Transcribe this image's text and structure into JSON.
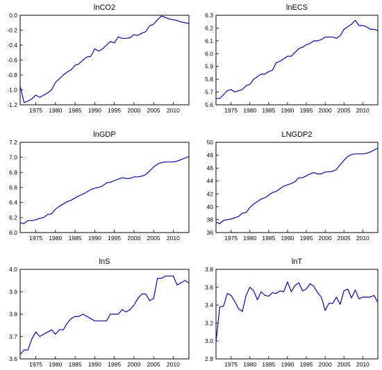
{
  "chart_data": [
    {
      "type": "line",
      "title": "lnCO2",
      "xlim": [
        1971,
        2014
      ],
      "ylim": [
        -1.2,
        0.0
      ],
      "yticks": [
        -1.2,
        -1.0,
        -0.8,
        -0.6,
        -0.4,
        -0.2,
        0.0
      ],
      "ytick_labels": [
        "-1.2",
        "-1.0",
        "-0.8",
        "-0.6",
        "-0.4",
        "-0.2",
        "0.0"
      ],
      "xticks": [
        1975,
        1980,
        1985,
        1990,
        1995,
        2000,
        2005,
        2010
      ],
      "xtick_labels": [
        "1975",
        "1980",
        "1985",
        "1990",
        "1995",
        "2000",
        "2005",
        "2010"
      ],
      "color": "#0000e6",
      "x": [
        1971,
        1972,
        1973,
        1974,
        1975,
        1976,
        1977,
        1978,
        1979,
        1980,
        1981,
        1982,
        1983,
        1984,
        1985,
        1986,
        1987,
        1988,
        1989,
        1990,
        1991,
        1992,
        1993,
        1994,
        1995,
        1996,
        1997,
        1998,
        1999,
        2000,
        2001,
        2002,
        2003,
        2004,
        2005,
        2006,
        2007,
        2008,
        2009,
        2010,
        2011,
        2012,
        2013,
        2014
      ],
      "y": [
        -0.95,
        -1.17,
        -1.15,
        -1.12,
        -1.07,
        -1.1,
        -1.07,
        -1.04,
        -1.0,
        -0.9,
        -0.85,
        -0.8,
        -0.76,
        -0.73,
        -0.67,
        -0.65,
        -0.6,
        -0.56,
        -0.55,
        -0.45,
        -0.48,
        -0.45,
        -0.4,
        -0.35,
        -0.37,
        -0.29,
        -0.31,
        -0.31,
        -0.3,
        -0.26,
        -0.27,
        -0.24,
        -0.22,
        -0.14,
        -0.12,
        -0.06,
        -0.01,
        -0.03,
        -0.05,
        -0.06,
        -0.07,
        -0.09,
        -0.1,
        -0.11
      ]
    },
    {
      "type": "line",
      "title": "lnECS",
      "xlim": [
        1971,
        2014
      ],
      "ylim": [
        5.6,
        6.3
      ],
      "yticks": [
        5.6,
        5.7,
        5.8,
        5.9,
        6.0,
        6.1,
        6.2,
        6.3
      ],
      "ytick_labels": [
        "5.6",
        "5.7",
        "5.8",
        "5.9",
        "6.0",
        "6.1",
        "6.2",
        "6.3"
      ],
      "xticks": [
        1975,
        1980,
        1985,
        1990,
        1995,
        2000,
        2005,
        2010
      ],
      "xtick_labels": [
        "1975",
        "1980",
        "1985",
        "1990",
        "1995",
        "2000",
        "2005",
        "2010"
      ],
      "color": "#0000e6",
      "x": [
        1971,
        1972,
        1973,
        1974,
        1975,
        1976,
        1977,
        1978,
        1979,
        1980,
        1981,
        1982,
        1983,
        1984,
        1985,
        1986,
        1987,
        1988,
        1989,
        1990,
        1991,
        1992,
        1993,
        1994,
        1995,
        1996,
        1997,
        1998,
        1999,
        2000,
        2001,
        2002,
        2003,
        2004,
        2005,
        2006,
        2007,
        2008,
        2009,
        2010,
        2011,
        2012,
        2013,
        2014
      ],
      "y": [
        5.65,
        5.65,
        5.68,
        5.71,
        5.72,
        5.7,
        5.71,
        5.72,
        5.75,
        5.76,
        5.8,
        5.82,
        5.84,
        5.84,
        5.86,
        5.87,
        5.93,
        5.94,
        5.96,
        5.98,
        5.98,
        6.01,
        6.04,
        6.05,
        6.07,
        6.08,
        6.1,
        6.1,
        6.11,
        6.13,
        6.13,
        6.13,
        6.12,
        6.14,
        6.19,
        6.21,
        6.23,
        6.26,
        6.22,
        6.22,
        6.21,
        6.19,
        6.19,
        6.18
      ]
    },
    {
      "type": "line",
      "title": "lnGDP",
      "xlim": [
        1971,
        2014
      ],
      "ylim": [
        6.0,
        7.2
      ],
      "yticks": [
        6.0,
        6.2,
        6.4,
        6.6,
        6.8,
        7.0,
        7.2
      ],
      "ytick_labels": [
        "6.0",
        "6.2",
        "6.4",
        "6.6",
        "6.8",
        "7.0",
        "7.2"
      ],
      "xticks": [
        1975,
        1980,
        1985,
        1990,
        1995,
        2000,
        2005,
        2010
      ],
      "xtick_labels": [
        "1975",
        "1980",
        "1985",
        "1990",
        "1995",
        "2000",
        "2005",
        "2010"
      ],
      "color": "#0000e6",
      "x": [
        1971,
        1972,
        1973,
        1974,
        1975,
        1976,
        1977,
        1978,
        1979,
        1980,
        1981,
        1982,
        1983,
        1984,
        1985,
        1986,
        1987,
        1988,
        1989,
        1990,
        1991,
        1992,
        1993,
        1994,
        1995,
        1996,
        1997,
        1998,
        1999,
        2000,
        2001,
        2002,
        2003,
        2004,
        2005,
        2006,
        2007,
        2008,
        2009,
        2010,
        2011,
        2012,
        2013,
        2014
      ],
      "y": [
        6.13,
        6.12,
        6.16,
        6.16,
        6.17,
        6.19,
        6.2,
        6.24,
        6.25,
        6.31,
        6.35,
        6.38,
        6.41,
        6.43,
        6.46,
        6.49,
        6.51,
        6.54,
        6.57,
        6.59,
        6.6,
        6.62,
        6.66,
        6.67,
        6.69,
        6.71,
        6.73,
        6.72,
        6.72,
        6.74,
        6.74,
        6.75,
        6.77,
        6.82,
        6.87,
        6.91,
        6.93,
        6.94,
        6.94,
        6.94,
        6.95,
        6.97,
        6.99,
        7.01
      ]
    },
    {
      "type": "line",
      "title": "LNGDP2",
      "xlim": [
        1971,
        2014
      ],
      "ylim": [
        36,
        50
      ],
      "yticks": [
        36,
        38,
        40,
        42,
        44,
        46,
        48,
        50
      ],
      "ytick_labels": [
        "36",
        "38",
        "40",
        "42",
        "44",
        "46",
        "48",
        "50"
      ],
      "xticks": [
        1975,
        1980,
        1985,
        1990,
        1995,
        2000,
        2005,
        2010
      ],
      "xtick_labels": [
        "1975",
        "1980",
        "1985",
        "1990",
        "1995",
        "2000",
        "2005",
        "2010"
      ],
      "color": "#0000e6",
      "x": [
        1971,
        1972,
        1973,
        1974,
        1975,
        1976,
        1977,
        1978,
        1979,
        1980,
        1981,
        1982,
        1983,
        1984,
        1985,
        1986,
        1987,
        1988,
        1989,
        1990,
        1991,
        1992,
        1993,
        1994,
        1995,
        1996,
        1997,
        1998,
        1999,
        2000,
        2001,
        2002,
        2003,
        2004,
        2005,
        2006,
        2007,
        2008,
        2009,
        2010,
        2011,
        2012,
        2013,
        2014
      ],
      "y": [
        37.6,
        37.4,
        37.9,
        38.0,
        38.1,
        38.3,
        38.5,
        39.0,
        39.1,
        39.9,
        40.4,
        40.8,
        41.2,
        41.4,
        41.8,
        42.2,
        42.4,
        42.8,
        43.2,
        43.4,
        43.6,
        43.9,
        44.5,
        44.5,
        44.8,
        45.1,
        45.3,
        45.1,
        45.1,
        45.4,
        45.4,
        45.5,
        45.8,
        46.5,
        47.2,
        47.8,
        48.1,
        48.2,
        48.2,
        48.2,
        48.3,
        48.5,
        48.8,
        49.1
      ]
    },
    {
      "type": "line",
      "title": "lnS",
      "xlim": [
        1971,
        2014
      ],
      "ylim": [
        3.6,
        4.0
      ],
      "yticks": [
        3.6,
        3.7,
        3.8,
        3.9,
        4.0
      ],
      "ytick_labels": [
        "3.6",
        "3.7",
        "3.8",
        "3.9",
        "4.0"
      ],
      "xticks": [
        1975,
        1980,
        1985,
        1990,
        1995,
        2000,
        2005,
        2010
      ],
      "xtick_labels": [
        "1975",
        "1980",
        "1985",
        "1990",
        "1995",
        "2000",
        "2005",
        "2010"
      ],
      "color": "#0000e6",
      "x": [
        1971,
        1972,
        1973,
        1974,
        1975,
        1976,
        1977,
        1978,
        1979,
        1980,
        1981,
        1982,
        1983,
        1984,
        1985,
        1986,
        1987,
        1988,
        1989,
        1990,
        1991,
        1992,
        1993,
        1994,
        1995,
        1996,
        1997,
        1998,
        1999,
        2000,
        2001,
        2002,
        2003,
        2004,
        2005,
        2006,
        2007,
        2008,
        2009,
        2010,
        2011,
        2012,
        2013,
        2014
      ],
      "y": [
        3.62,
        3.64,
        3.64,
        3.69,
        3.72,
        3.7,
        3.71,
        3.72,
        3.73,
        3.71,
        3.73,
        3.73,
        3.76,
        3.78,
        3.79,
        3.79,
        3.8,
        3.79,
        3.78,
        3.77,
        3.77,
        3.77,
        3.77,
        3.8,
        3.8,
        3.8,
        3.82,
        3.81,
        3.82,
        3.84,
        3.87,
        3.89,
        3.89,
        3.86,
        3.87,
        3.96,
        3.96,
        3.97,
        3.97,
        3.97,
        3.93,
        3.94,
        3.95,
        3.94
      ]
    },
    {
      "type": "line",
      "title": "lnT",
      "xlim": [
        1971,
        2014
      ],
      "ylim": [
        2.8,
        3.8
      ],
      "yticks": [
        2.8,
        3.0,
        3.2,
        3.4,
        3.6,
        3.8
      ],
      "ytick_labels": [
        "2.8",
        "3.0",
        "3.2",
        "3.4",
        "3.6",
        "3.8"
      ],
      "xticks": [
        1975,
        1980,
        1985,
        1990,
        1995,
        2000,
        2005,
        2010
      ],
      "xtick_labels": [
        "1975",
        "1980",
        "1985",
        "1990",
        "1995",
        "2000",
        "2005",
        "2010"
      ],
      "color": "#0000e6",
      "x": [
        1971,
        1972,
        1973,
        1974,
        1975,
        1976,
        1977,
        1978,
        1979,
        1980,
        1981,
        1982,
        1983,
        1984,
        1985,
        1986,
        1987,
        1988,
        1989,
        1990,
        1991,
        1992,
        1993,
        1994,
        1995,
        1996,
        1997,
        1998,
        1999,
        2000,
        2001,
        2002,
        2003,
        2004,
        2005,
        2006,
        2007,
        2008,
        2009,
        2010,
        2011,
        2012,
        2013,
        2014
      ],
      "y": [
        2.99,
        3.38,
        3.39,
        3.53,
        3.51,
        3.44,
        3.36,
        3.33,
        3.51,
        3.6,
        3.56,
        3.46,
        3.55,
        3.51,
        3.5,
        3.54,
        3.53,
        3.56,
        3.55,
        3.66,
        3.55,
        3.62,
        3.65,
        3.56,
        3.58,
        3.64,
        3.61,
        3.54,
        3.49,
        3.34,
        3.42,
        3.42,
        3.49,
        3.41,
        3.56,
        3.58,
        3.48,
        3.57,
        3.47,
        3.49,
        3.49,
        3.49,
        3.51,
        3.43
      ]
    }
  ]
}
